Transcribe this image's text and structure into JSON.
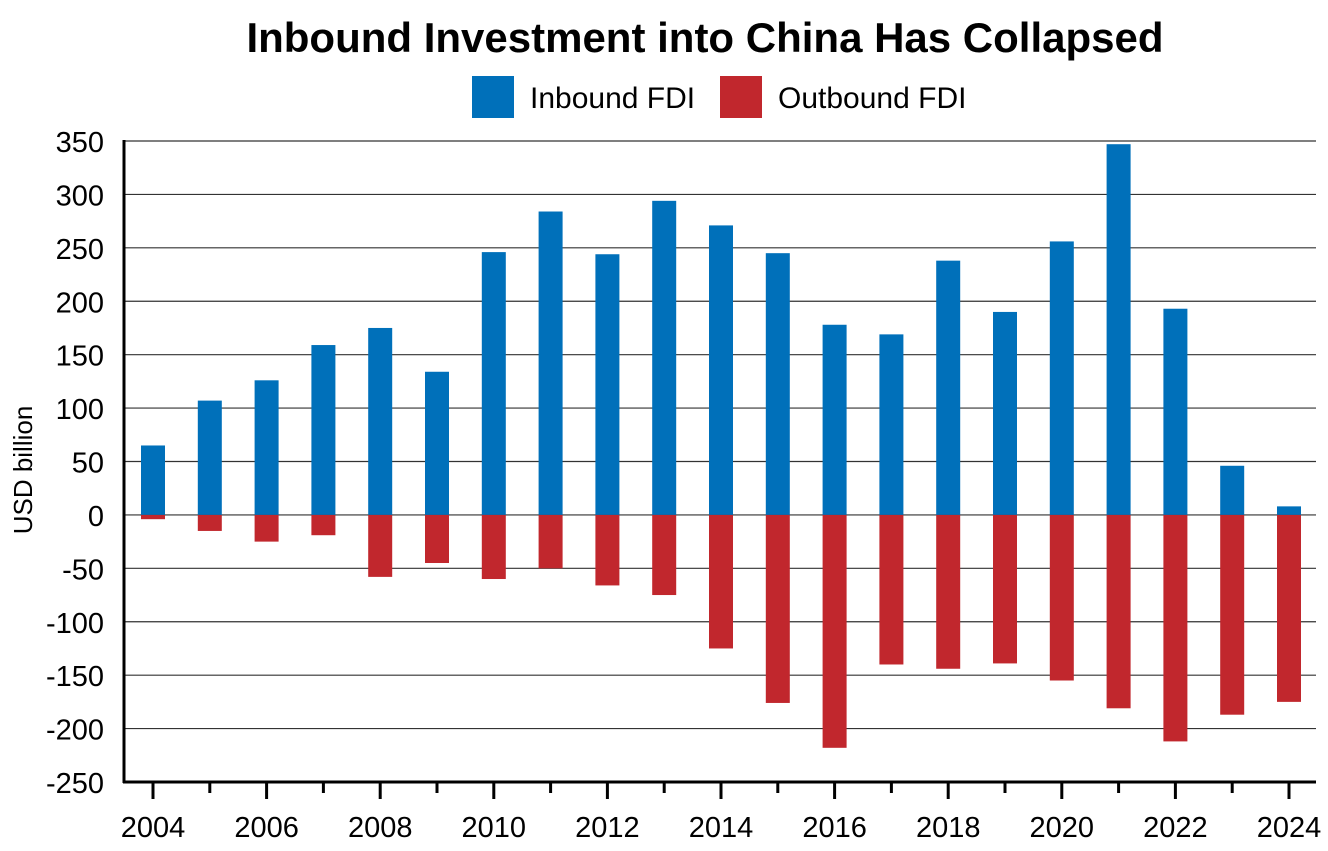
{
  "chart_data": {
    "type": "bar",
    "title": "Inbound Investment into China Has Collapsed",
    "ylabel": "USD billion",
    "xlabel": "",
    "ylim": [
      -250,
      350
    ],
    "yticks": [
      350,
      300,
      250,
      200,
      150,
      100,
      50,
      0,
      -50,
      -100,
      -150,
      -200,
      -250
    ],
    "grid": true,
    "legend_placement": "top",
    "categories": [
      2004,
      2005,
      2006,
      2007,
      2008,
      2009,
      2010,
      2011,
      2012,
      2013,
      2014,
      2015,
      2016,
      2017,
      2018,
      2019,
      2020,
      2021,
      2022,
      2023,
      2024
    ],
    "xtick_labels": [
      "2004",
      "2006",
      "2008",
      "2010",
      "2012",
      "2014",
      "2016",
      "2018",
      "2020",
      "2022",
      "2024"
    ],
    "series": [
      {
        "name": "Inbound FDI",
        "color": "#0070BA",
        "values": [
          65,
          107,
          126,
          159,
          175,
          134,
          246,
          284,
          244,
          294,
          271,
          245,
          178,
          169,
          238,
          190,
          256,
          347,
          193,
          46,
          8
        ]
      },
      {
        "name": "Outbound FDI",
        "color": "#C1272D",
        "values": [
          -4,
          -15,
          -25,
          -19,
          -58,
          -45,
          -60,
          -50,
          -66,
          -75,
          -125,
          -176,
          -218,
          -140,
          -144,
          -139,
          -155,
          -181,
          -212,
          -187,
          -175
        ]
      }
    ]
  }
}
